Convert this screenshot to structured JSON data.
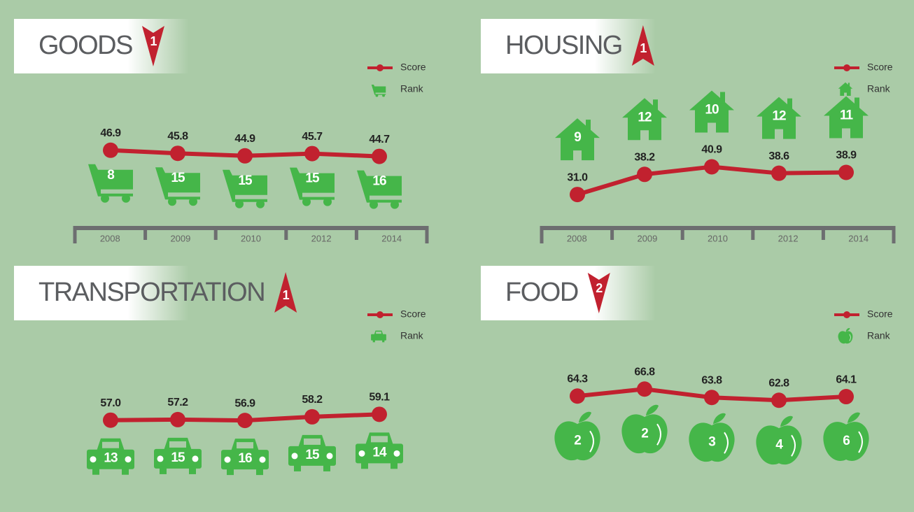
{
  "chart_data": [
    {
      "type": "line",
      "title": "GOODS",
      "rank_change": "1",
      "arrow": "down",
      "icon": "cart",
      "categories": [
        "2008",
        "2009",
        "2010",
        "2012",
        "2014"
      ],
      "series": [
        {
          "name": "Score",
          "color": "#c1212f",
          "values": [
            46.9,
            45.8,
            44.9,
            45.7,
            44.7
          ],
          "value_labels": [
            "46.9",
            "45.8",
            "44.9",
            "45.7",
            "44.7"
          ]
        },
        {
          "name": "Rank",
          "color": "#45b649",
          "values": [
            8,
            15,
            15,
            15,
            16
          ]
        }
      ]
    },
    {
      "type": "line",
      "title": "HOUSING",
      "rank_change": "1",
      "arrow": "up",
      "icon": "house",
      "categories": [
        "2008",
        "2009",
        "2010",
        "2012",
        "2014"
      ],
      "series": [
        {
          "name": "Score",
          "color": "#c1212f",
          "values": [
            31.0,
            38.2,
            40.9,
            38.6,
            38.9
          ],
          "value_labels": [
            "31.0",
            "38.2",
            "40.9",
            "38.6",
            "38.9"
          ]
        },
        {
          "name": "Rank",
          "color": "#45b649",
          "values": [
            9,
            12,
            10,
            12,
            11
          ]
        }
      ]
    },
    {
      "type": "line",
      "title": "TRANSPORTATION",
      "rank_change": "1",
      "arrow": "up",
      "icon": "car",
      "series": [
        {
          "name": "Score",
          "color": "#c1212f",
          "values": [
            57.0,
            57.2,
            56.9,
            58.2,
            59.1
          ],
          "value_labels": [
            "57.0",
            "57.2",
            "56.9",
            "58.2",
            "59.1"
          ]
        },
        {
          "name": "Rank",
          "color": "#45b649",
          "values": [
            13,
            15,
            16,
            15,
            14
          ]
        }
      ]
    },
    {
      "type": "line",
      "title": "FOOD",
      "rank_change": "2",
      "arrow": "down",
      "icon": "apple",
      "series": [
        {
          "name": "Score",
          "color": "#c1212f",
          "values": [
            64.3,
            66.8,
            63.8,
            62.8,
            64.1
          ],
          "value_labels": [
            "64.3",
            "66.8",
            "63.8",
            "62.8",
            "64.1"
          ]
        },
        {
          "name": "Rank",
          "color": "#45b649",
          "values": [
            2,
            2,
            3,
            4,
            6
          ]
        }
      ]
    }
  ]
}
